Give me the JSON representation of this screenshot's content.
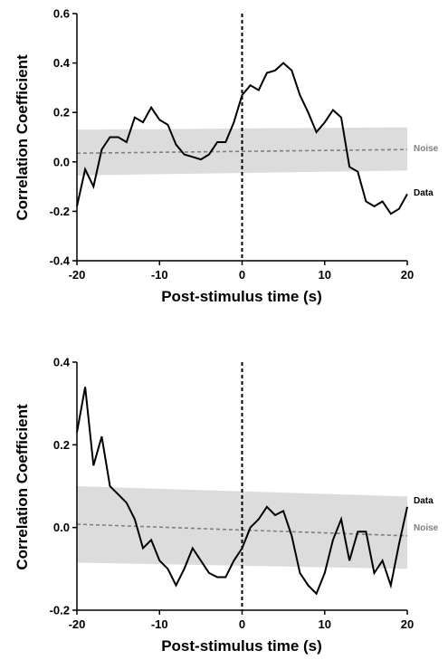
{
  "chart_data": [
    {
      "type": "line",
      "xlabel": "Post-stimulus time (s)",
      "ylabel": "Correlation Coefficient",
      "xlim": [
        -20,
        20
      ],
      "ylim": [
        -0.4,
        0.6
      ],
      "xticks": [
        -20,
        -10,
        0,
        10,
        20
      ],
      "yticks": [
        "-0.4",
        "-0.2",
        "0.0",
        "0.2",
        "0.4",
        "0.6"
      ],
      "colors": {
        "data": "#000000",
        "noise": "#808080",
        "band": "#dcdcdc"
      },
      "series": [
        {
          "name": "Data",
          "x": [
            -20,
            -19,
            -18,
            -17,
            -16,
            -15,
            -14,
            -13,
            -12,
            -11,
            -10,
            -9,
            -8,
            -7,
            -6,
            -5,
            -4,
            -3,
            -2,
            -1,
            0,
            1,
            2,
            3,
            4,
            5,
            6,
            7,
            8,
            9,
            10,
            11,
            12,
            13,
            14,
            15,
            16,
            17,
            18,
            19,
            20
          ],
          "y": [
            -0.18,
            -0.03,
            -0.1,
            0.05,
            0.1,
            0.1,
            0.08,
            0.18,
            0.16,
            0.22,
            0.17,
            0.15,
            0.07,
            0.03,
            0.02,
            0.01,
            0.03,
            0.08,
            0.08,
            0.16,
            0.27,
            0.31,
            0.29,
            0.36,
            0.37,
            0.4,
            0.37,
            0.27,
            0.2,
            0.12,
            0.16,
            0.21,
            0.18,
            -0.02,
            -0.04,
            -0.16,
            -0.18,
            -0.16,
            -0.21,
            -0.19,
            -0.13
          ]
        },
        {
          "name": "Noise",
          "x": [
            -20,
            20
          ],
          "y": [
            0.035,
            0.05
          ],
          "band_upper": [
            0.13,
            0.14
          ],
          "band_lower": [
            -0.055,
            -0.035
          ]
        }
      ],
      "vline_x": 0
    },
    {
      "type": "line",
      "xlabel": "Post-stimulus time (s)",
      "ylabel": "Correlation Coefficient",
      "xlim": [
        -20,
        20
      ],
      "ylim": [
        -0.2,
        0.4
      ],
      "xticks": [
        -20,
        -10,
        0,
        10,
        20
      ],
      "yticks": [
        "-0.2",
        "0.0",
        "0.2",
        "0.4"
      ],
      "colors": {
        "data": "#000000",
        "noise": "#808080",
        "band": "#dcdcdc"
      },
      "series": [
        {
          "name": "Data",
          "x": [
            -20,
            -19,
            -18,
            -17,
            -16,
            -15,
            -14,
            -13,
            -12,
            -11,
            -10,
            -9,
            -8,
            -7,
            -6,
            -5,
            -4,
            -3,
            -2,
            -1,
            0,
            1,
            2,
            3,
            4,
            5,
            6,
            7,
            8,
            9,
            10,
            11,
            12,
            13,
            14,
            15,
            16,
            17,
            18,
            19,
            20
          ],
          "y": [
            0.23,
            0.34,
            0.15,
            0.22,
            0.1,
            0.08,
            0.06,
            0.02,
            -0.05,
            -0.03,
            -0.08,
            -0.1,
            -0.14,
            -0.1,
            -0.05,
            -0.08,
            -0.11,
            -0.12,
            -0.12,
            -0.08,
            -0.05,
            0.0,
            0.02,
            0.05,
            0.03,
            0.04,
            -0.02,
            -0.11,
            -0.14,
            -0.16,
            -0.11,
            -0.03,
            0.02,
            -0.08,
            -0.01,
            -0.01,
            -0.11,
            -0.08,
            -0.14,
            -0.04,
            0.05
          ]
        },
        {
          "name": "Noise",
          "x": [
            -20,
            20
          ],
          "y": [
            0.008,
            -0.02
          ],
          "band_upper": [
            0.1,
            0.075
          ],
          "band_lower": [
            -0.085,
            -0.1
          ]
        }
      ],
      "vline_x": 0
    }
  ]
}
